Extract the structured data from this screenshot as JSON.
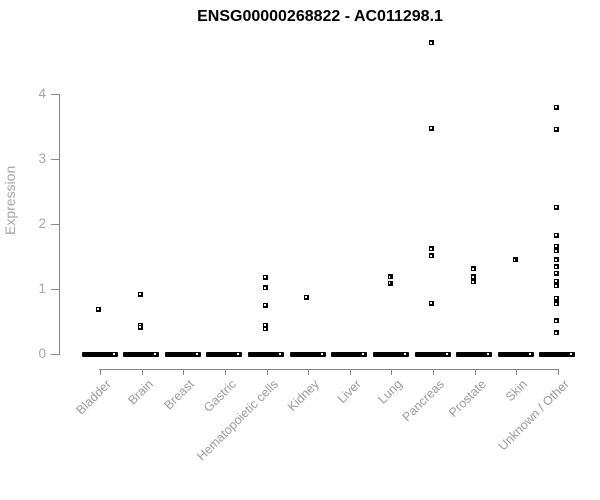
{
  "chart_data": {
    "type": "scatter",
    "title": "ENSG00000268822 - AC011298.1",
    "subtitle": "",
    "xlabel": "",
    "ylabel": "Expression",
    "ylim": [
      0,
      4
    ],
    "yticks": [
      0,
      1,
      2,
      3,
      4
    ],
    "grid": false,
    "legend": "none",
    "marker": {
      "shape": "small-open-square",
      "color": "#000000"
    },
    "axis_color": "#878787",
    "tick_text_color": "#a6a6a6",
    "categories": [
      "Bladder",
      "Brain",
      "Breast",
      "Gastric",
      "Hematopoietic cells",
      "Kidney",
      "Liver",
      "Lung",
      "Pancreas",
      "Prostate",
      "Skin",
      "Unknown / Other"
    ],
    "points": {
      "Bladder": [
        0.69
      ],
      "Brain": [
        0.92,
        0.44,
        0.41
      ],
      "Breast": [],
      "Gastric": [],
      "Hematopoietic cells": [
        1.18,
        1.02,
        0.75,
        0.44,
        0.39
      ],
      "Kidney": [
        0.87
      ],
      "Liver": [],
      "Lung": [
        1.19,
        1.09
      ],
      "Pancreas": [
        4.79,
        3.47,
        1.62,
        1.51,
        0.78
      ],
      "Prostate": [
        1.31,
        1.19,
        1.11
      ],
      "Skin": [
        1.45
      ],
      "Unknown / Other": [
        3.8,
        3.46,
        2.26,
        1.83,
        1.66,
        1.59,
        1.45,
        1.34,
        1.24,
        1.12,
        1.05,
        0.86,
        0.77,
        0.51,
        0.33
      ]
    },
    "zero_cluster_categories": [
      "Bladder",
      "Brain",
      "Breast",
      "Gastric",
      "Hematopoietic cells",
      "Kidney",
      "Liver",
      "Lung",
      "Pancreas",
      "Prostate",
      "Skin",
      "Unknown / Other"
    ],
    "note": "thick black bars at y=0 are dense clusters of samples with zero expression"
  }
}
